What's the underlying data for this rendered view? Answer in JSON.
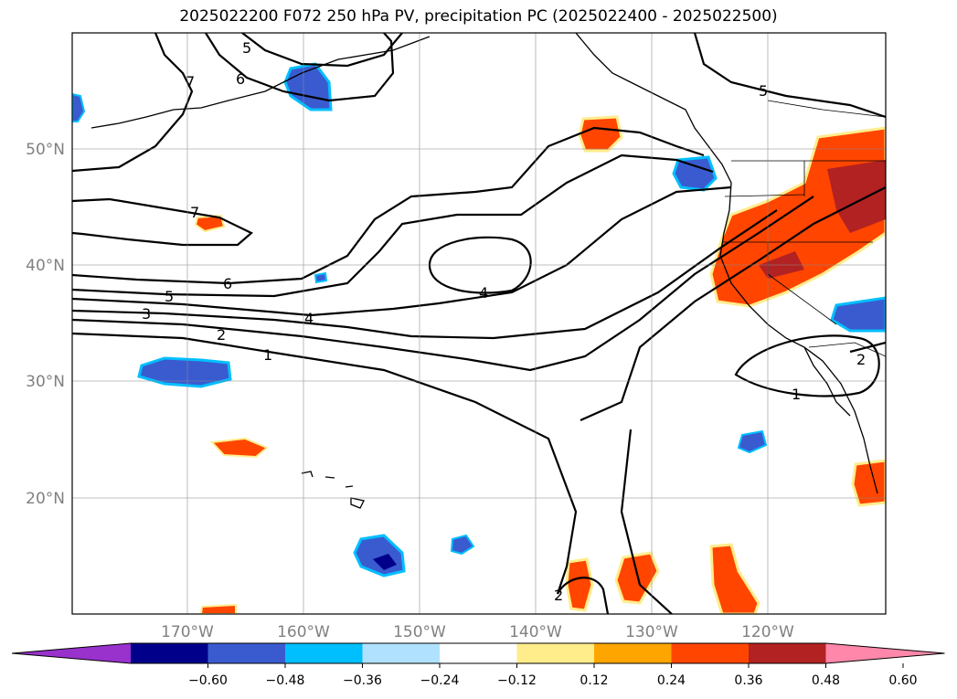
{
  "title": "2025022200 F072 250 hPa PV, precipitation PC (2025022400 - 2025022500)",
  "longitude_labels": [
    "170°W",
    "160°W",
    "150°W",
    "140°W",
    "130°W",
    "120°W"
  ],
  "latitude_labels": [
    "50°N",
    "40°N",
    "30°N",
    "20°N"
  ],
  "contour_labels": {
    "c7a": "7",
    "c6a": "6",
    "c5a": "5",
    "c7b": "7",
    "c6b": "6",
    "c5b": "5",
    "c3": "3",
    "c2a": "2",
    "c1a": "1",
    "c4a": "4",
    "c4b": "4",
    "c5ne": "5",
    "c1b": "1",
    "c2b": "2",
    "c2c": "2"
  },
  "colorbar": {
    "colors": [
      "#9932CC",
      "#00008B",
      "#3A5BD0",
      "#00BFFF",
      "#B0E2FF",
      "#FFFFFF",
      "#FFEC8B",
      "#FFA500",
      "#FF4500",
      "#B22222",
      "#FF88AA"
    ],
    "tick_labels": [
      "−0.60",
      "−0.48",
      "−0.36",
      "−0.24",
      "−0.12",
      "0.12",
      "0.24",
      "0.36",
      "0.48",
      "0.60"
    ]
  }
}
